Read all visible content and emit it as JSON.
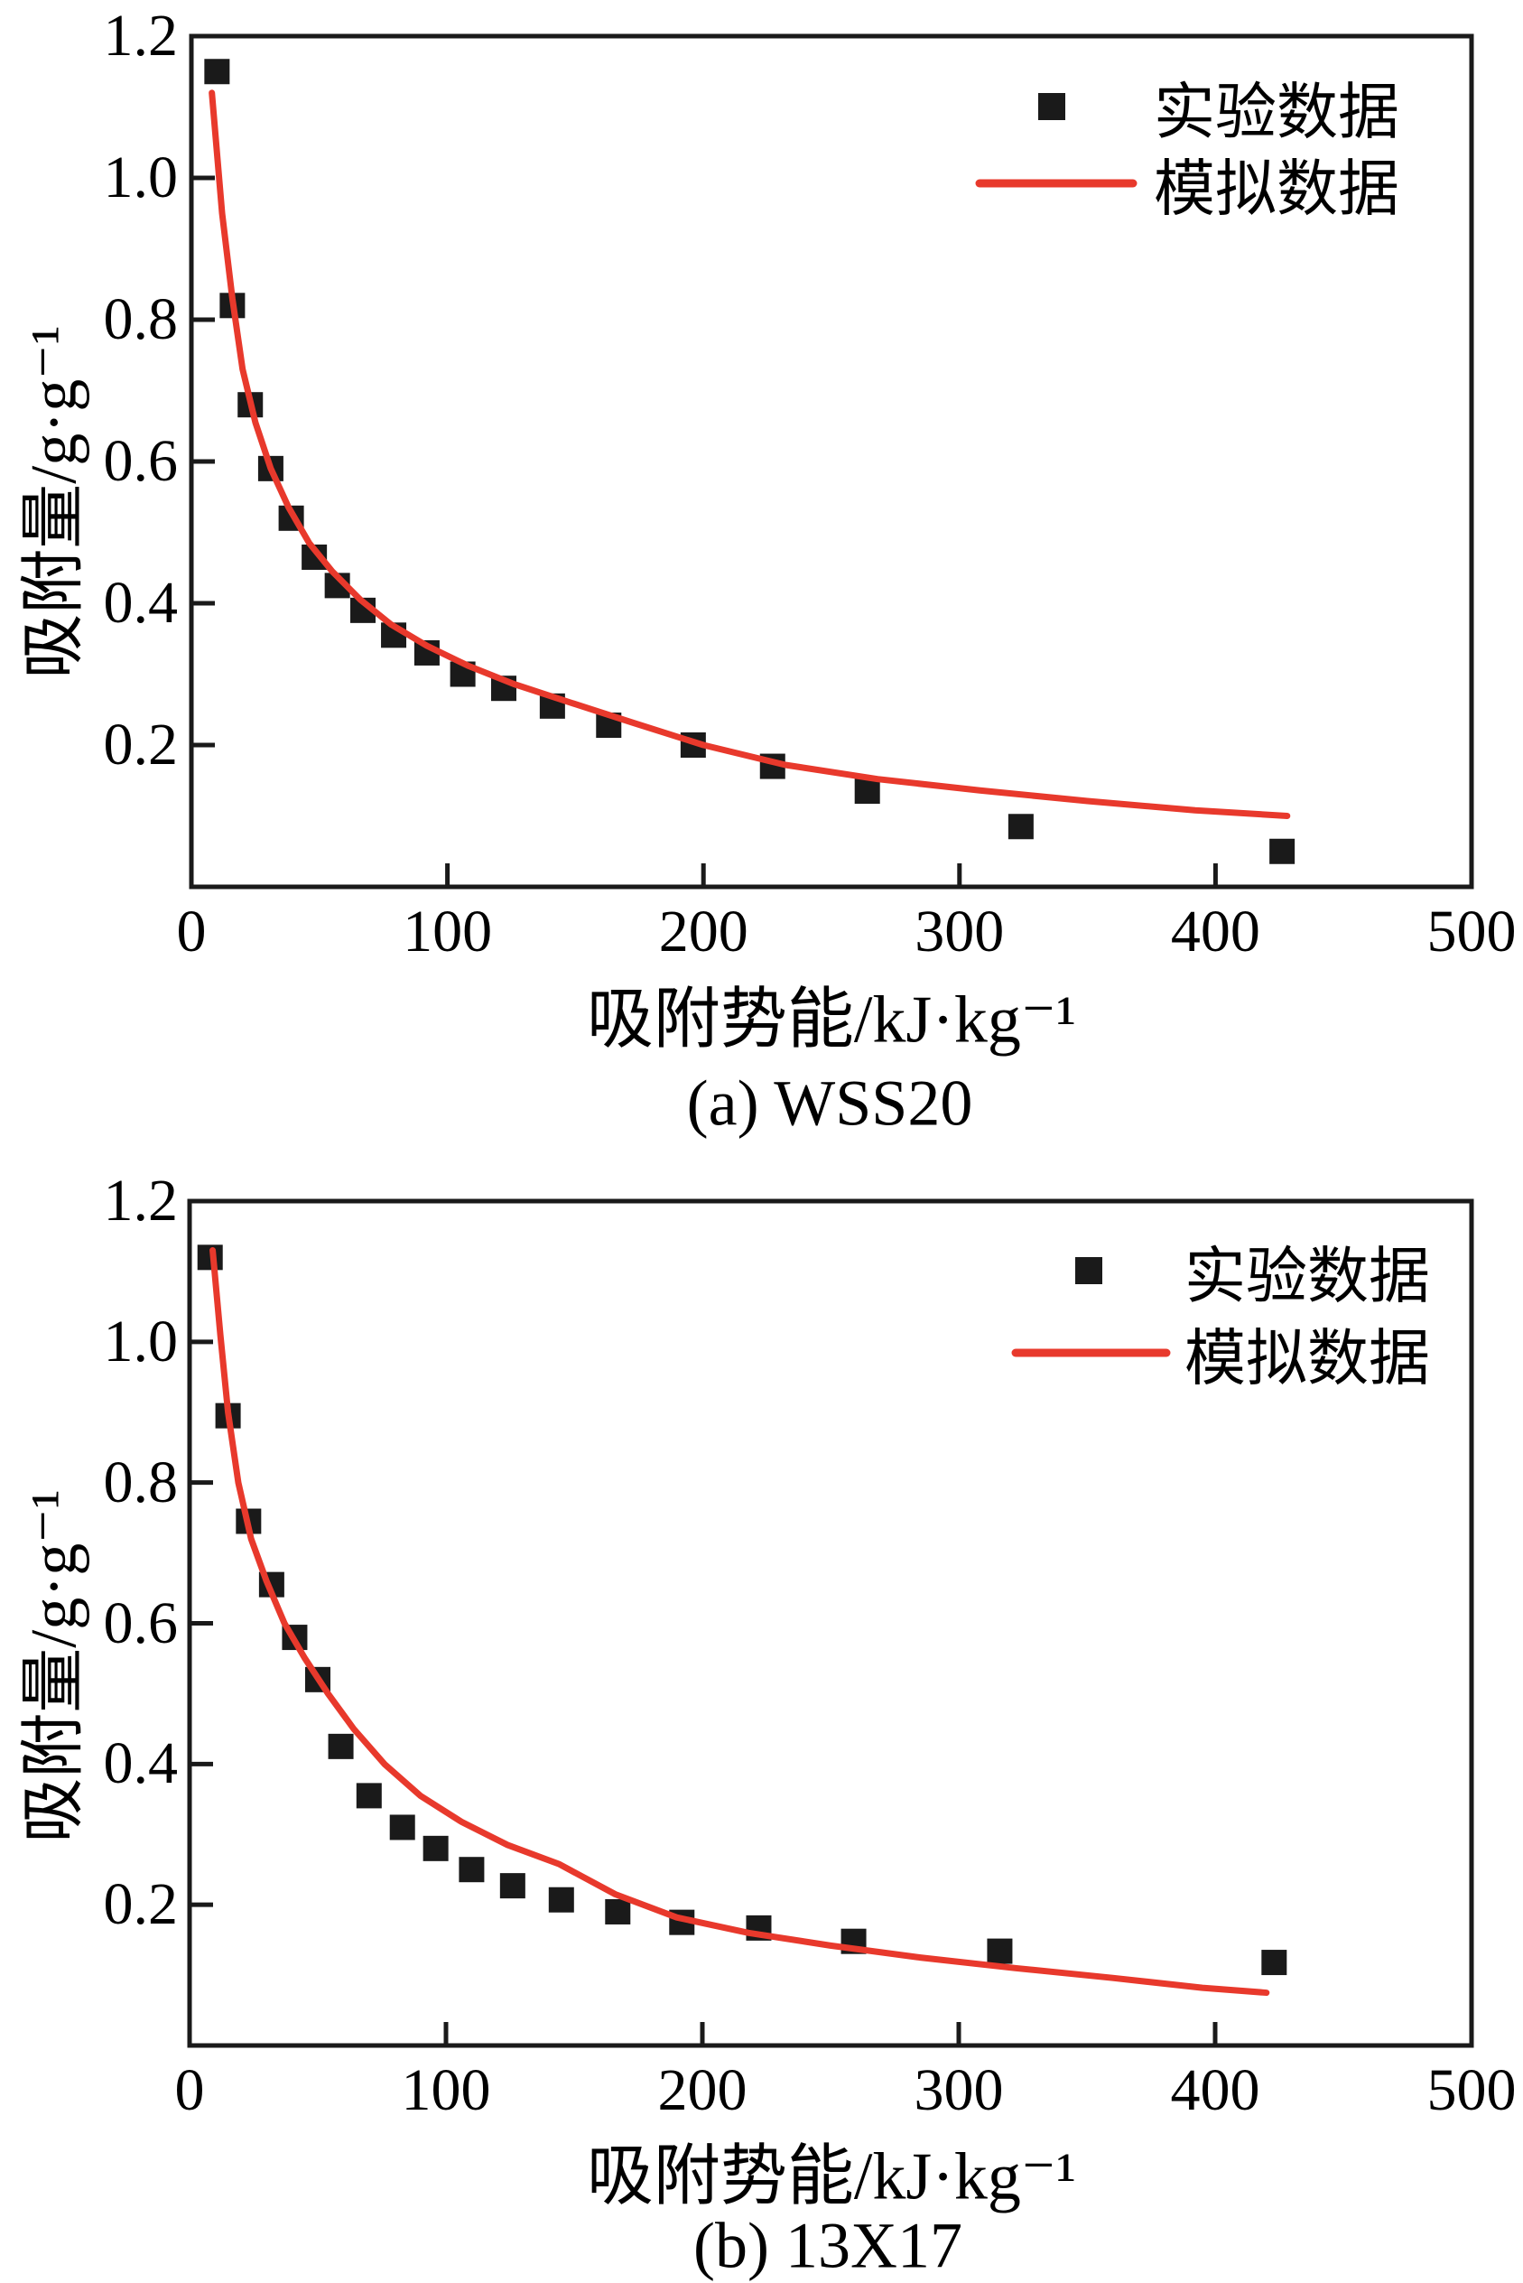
{
  "figure": {
    "background": "#ffffff",
    "type": "two stacked scatter charts with fitted curves"
  },
  "colors": {
    "experimental_marker": "#1a1a1a",
    "simulated_line": "#e8392c",
    "axis": "#1a1a1a",
    "text": "#000000"
  },
  "chart_data": [
    {
      "id": "a",
      "type": "scatter",
      "title": "(a) WSS20",
      "xlabel": "吸附势能/kJ·kg⁻¹",
      "ylabel": "吸附量/g·g⁻¹",
      "xlim": [
        0,
        500
      ],
      "ylim": [
        0,
        1.2
      ],
      "x_ticks": [
        0,
        100,
        200,
        300,
        400,
        500
      ],
      "x_tick_labels": [
        "0",
        "100",
        "200",
        "300",
        "400",
        "500"
      ],
      "y_ticks": [
        0.2,
        0.4,
        0.6,
        0.8,
        1.0,
        1.2
      ],
      "y_tick_labels": [
        "0.2",
        "0.4",
        "0.6",
        "0.8",
        "1.0",
        "1.2"
      ],
      "grid": false,
      "legend_position": "top-right",
      "legend": [
        {
          "label": "实验数据",
          "marker": "black-square"
        },
        {
          "label": "模拟数据",
          "marker": "red-line"
        }
      ],
      "series": [
        {
          "name": "实验数据",
          "type": "scatter",
          "points": [
            [
              10,
              1.15
            ],
            [
              16,
              0.82
            ],
            [
              23,
              0.68
            ],
            [
              31,
              0.59
            ],
            [
              39,
              0.52
            ],
            [
              48,
              0.465
            ],
            [
              57,
              0.425
            ],
            [
              67,
              0.39
            ],
            [
              79,
              0.355
            ],
            [
              92,
              0.33
            ],
            [
              106,
              0.3
            ],
            [
              122,
              0.28
            ],
            [
              141,
              0.255
            ],
            [
              163,
              0.228
            ],
            [
              196,
              0.2
            ],
            [
              227,
              0.17
            ],
            [
              264,
              0.135
            ],
            [
              324,
              0.085
            ],
            [
              426,
              0.05
            ]
          ]
        },
        {
          "name": "模拟数据",
          "type": "line",
          "points": [
            [
              8,
              1.12
            ],
            [
              12,
              0.95
            ],
            [
              16,
              0.83
            ],
            [
              20,
              0.73
            ],
            [
              25,
              0.655
            ],
            [
              31,
              0.59
            ],
            [
              38,
              0.535
            ],
            [
              46,
              0.485
            ],
            [
              55,
              0.445
            ],
            [
              66,
              0.405
            ],
            [
              78,
              0.37
            ],
            [
              92,
              0.34
            ],
            [
              108,
              0.312
            ],
            [
              126,
              0.286
            ],
            [
              148,
              0.26
            ],
            [
              172,
              0.232
            ],
            [
              200,
              0.2
            ],
            [
              232,
              0.172
            ],
            [
              268,
              0.152
            ],
            [
              308,
              0.136
            ],
            [
              350,
              0.121
            ],
            [
              392,
              0.108
            ],
            [
              428,
              0.1
            ]
          ]
        }
      ]
    },
    {
      "id": "b",
      "type": "scatter",
      "title": "(b) 13X17",
      "xlabel": "吸附势能/kJ·kg⁻¹",
      "ylabel": "吸附量/g·g⁻¹",
      "xlim": [
        0,
        500
      ],
      "ylim": [
        0,
        1.2
      ],
      "x_ticks": [
        0,
        100,
        200,
        300,
        400,
        500
      ],
      "x_tick_labels": [
        "0",
        "100",
        "200",
        "300",
        "400",
        "500"
      ],
      "y_ticks": [
        0.2,
        0.4,
        0.6,
        0.8,
        1.0,
        1.2
      ],
      "y_tick_labels": [
        "0.2",
        "0.4",
        "0.6",
        "0.8",
        "1.0",
        "1.2"
      ],
      "grid": false,
      "legend_position": "top-right",
      "legend": [
        {
          "label": "实验数据",
          "marker": "black-square"
        },
        {
          "label": "模拟数据",
          "marker": "red-line"
        }
      ],
      "series": [
        {
          "name": "实验数据",
          "type": "scatter",
          "points": [
            [
              8,
              1.12
            ],
            [
              15,
              0.895
            ],
            [
              23,
              0.745
            ],
            [
              32,
              0.655
            ],
            [
              41,
              0.58
            ],
            [
              50,
              0.52
            ],
            [
              59,
              0.425
            ],
            [
              70,
              0.355
            ],
            [
              83,
              0.31
            ],
            [
              96,
              0.28
            ],
            [
              110,
              0.25
            ],
            [
              126,
              0.227
            ],
            [
              145,
              0.207
            ],
            [
              167,
              0.19
            ],
            [
              192,
              0.175
            ],
            [
              222,
              0.167
            ],
            [
              259,
              0.148
            ],
            [
              316,
              0.134
            ],
            [
              423,
              0.118
            ]
          ]
        },
        {
          "name": "模拟数据",
          "type": "line",
          "points": [
            [
              9,
              1.13
            ],
            [
              12,
              1.01
            ],
            [
              15,
              0.9
            ],
            [
              19,
              0.8
            ],
            [
              24,
              0.72
            ],
            [
              30,
              0.66
            ],
            [
              37,
              0.6
            ],
            [
              45,
              0.55
            ],
            [
              54,
              0.5
            ],
            [
              64,
              0.45
            ],
            [
              76,
              0.4
            ],
            [
              90,
              0.355
            ],
            [
              106,
              0.318
            ],
            [
              124,
              0.285
            ],
            [
              144,
              0.258
            ],
            [
              166,
              0.215
            ],
            [
              190,
              0.182
            ],
            [
              218,
              0.16
            ],
            [
              250,
              0.142
            ],
            [
              285,
              0.125
            ],
            [
              322,
              0.11
            ],
            [
              360,
              0.096
            ],
            [
              395,
              0.082
            ],
            [
              420,
              0.075
            ]
          ]
        }
      ]
    }
  ]
}
